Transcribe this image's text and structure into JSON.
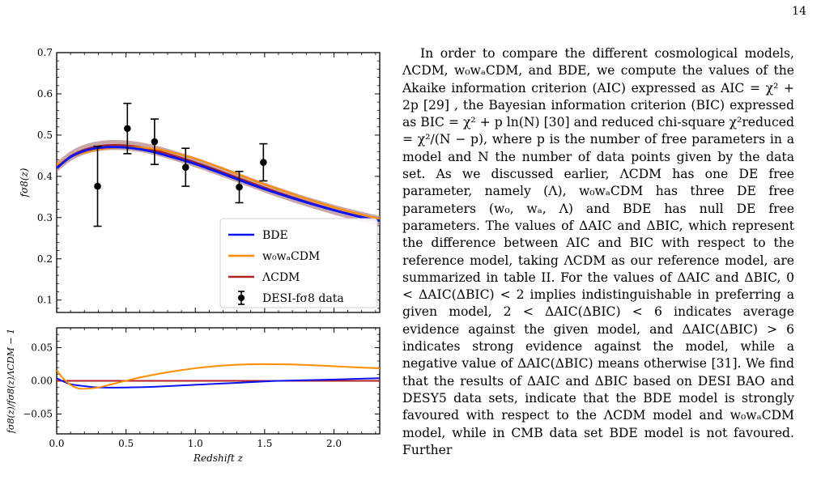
{
  "page_number": "14",
  "paragraph": "In order to compare the different cosmological models, ΛCDM, w₀wₐCDM, and BDE, we compute the values of the Akaike information criterion (AIC) expressed as AIC = χ² + 2p [29] , the Bayesian information criterion (BIC) expressed as BIC = χ² + p ln(N) [30] and reduced chi-square χ²reduced = χ²/(N − p), where p is the number of free parameters in a model and N the number of data points given by the data set. As we discussed earlier, ΛCDM has one DE free parameter, namely (Λ), w₀wₐCDM has three DE free parameters (w₀, wₐ, Λ) and BDE has null DE free parameters. The values of ΔAIC and ΔBIC, which represent the difference between AIC and BIC with respect to the reference model, taking ΛCDM as our reference model, are summarized in table II. For the values of ΔAIC and ΔBIC, 0 < ΔAIC(ΔBIC) < 2 implies indistinguishable in preferring a given model, 2 < ΔAIC(ΔBIC) < 6 indicates average evidence against the given model, and ΔAIC(ΔBIC) > 6 indicates strong evidence against the model, while a negative value of ΔAIC(ΔBIC) means otherwise [31]. We find that the results of ΔAIC and ΔBIC based on DESI BAO and DESY5 data sets, indicate that the BDE model is strongly favoured with respect to the ΛCDM model and w₀wₐCDM model, while in CMB data set BDE model is not favoured. Further",
  "colors": {
    "bde": "#0a14f5",
    "w0wa": "#ff8c00",
    "lcdm": "#b22222",
    "band": "#b88a8a",
    "data": "#000000",
    "ref_link": "#1a4fd6"
  },
  "chart_data": [
    {
      "type": "line",
      "ylabel": "fσ8(z)",
      "xlim": [
        0.0,
        2.33
      ],
      "ylim": [
        0.07,
        0.7
      ],
      "xticks": [
        0.0,
        0.5,
        1.0,
        1.5,
        2.0
      ],
      "yticks": [
        0.1,
        0.2,
        0.3,
        0.4,
        0.5,
        0.6,
        0.7
      ],
      "yticklabels": [
        "0.1",
        "0.2",
        "0.3",
        "0.4",
        "0.5",
        "0.6",
        "0.7"
      ],
      "legend_position": "lower-right",
      "legend": [
        "BDE",
        "w₀wₐCDM",
        "ΛCDM",
        "DESI-fσ8 data"
      ],
      "series": [
        {
          "name": "BDE",
          "x": [
            0.0,
            0.1,
            0.2,
            0.3,
            0.4,
            0.5,
            0.6,
            0.7,
            0.8,
            1.0,
            1.2,
            1.4,
            1.6,
            1.8,
            2.0,
            2.2,
            2.33
          ],
          "y": [
            0.42,
            0.447,
            0.462,
            0.469,
            0.471,
            0.47,
            0.466,
            0.459,
            0.45,
            0.43,
            0.406,
            0.381,
            0.358,
            0.337,
            0.318,
            0.301,
            0.292
          ]
        },
        {
          "name": "w₀wₐCDM",
          "x": [
            0.0,
            0.1,
            0.2,
            0.3,
            0.4,
            0.5,
            0.6,
            0.7,
            0.8,
            1.0,
            1.2,
            1.4,
            1.6,
            1.8,
            2.0,
            2.2,
            2.33
          ],
          "y": [
            0.428,
            0.447,
            0.458,
            0.465,
            0.469,
            0.471,
            0.47,
            0.467,
            0.461,
            0.443,
            0.419,
            0.393,
            0.369,
            0.346,
            0.325,
            0.307,
            0.297
          ]
        },
        {
          "name": "ΛCDM",
          "x": [
            0.0,
            0.1,
            0.2,
            0.3,
            0.4,
            0.5,
            0.6,
            0.7,
            0.8,
            1.0,
            1.2,
            1.4,
            1.6,
            1.8,
            2.0,
            2.2,
            2.33
          ],
          "y": [
            0.422,
            0.449,
            0.465,
            0.473,
            0.476,
            0.475,
            0.471,
            0.464,
            0.455,
            0.434,
            0.41,
            0.385,
            0.361,
            0.339,
            0.319,
            0.302,
            0.292
          ]
        }
      ],
      "band": {
        "name": "ΛCDM",
        "halfwidth": 0.012
      },
      "data_points": {
        "name": "DESI-fσ8 data",
        "x": [
          0.295,
          0.51,
          0.706,
          0.93,
          1.317,
          1.491
        ],
        "y": [
          0.376,
          0.516,
          0.484,
          0.422,
          0.374,
          0.434
        ],
        "err": [
          0.097,
          0.061,
          0.055,
          0.046,
          0.038,
          0.045
        ]
      }
    },
    {
      "type": "line",
      "xlabel": "Redshift z",
      "ylabel": "fσ8(z)/fσ8(z)ΛCDM − 1",
      "xlim": [
        0.0,
        2.33
      ],
      "ylim": [
        -0.08,
        0.08
      ],
      "xticks": [
        0.0,
        0.5,
        1.0,
        1.5,
        2.0
      ],
      "xticklabels": [
        "0.0",
        "0.5",
        "1.0",
        "1.5",
        "2.0"
      ],
      "yticks": [
        -0.05,
        0.0,
        0.05
      ],
      "yticklabels": [
        "−0.05",
        "0.00",
        "0.05"
      ],
      "series": [
        {
          "name": "BDE",
          "x": [
            0.0,
            0.05,
            0.1,
            0.2,
            0.3,
            0.5,
            0.7,
            1.0,
            1.3,
            1.6,
            2.0,
            2.33
          ],
          "y": [
            0.004,
            -0.001,
            -0.005,
            -0.008,
            -0.01,
            -0.01,
            -0.009,
            -0.006,
            -0.003,
            0.0,
            0.002,
            0.004
          ]
        },
        {
          "name": "w₀wₐCDM",
          "x": [
            0.0,
            0.05,
            0.1,
            0.15,
            0.2,
            0.3,
            0.4,
            0.6,
            0.8,
            1.0,
            1.2,
            1.4,
            1.6,
            1.8,
            2.0,
            2.2,
            2.33
          ],
          "y": [
            0.016,
            0.003,
            -0.006,
            -0.011,
            -0.012,
            -0.01,
            -0.005,
            0.005,
            0.013,
            0.019,
            0.023,
            0.025,
            0.025,
            0.024,
            0.022,
            0.02,
            0.019
          ]
        },
        {
          "name": "ΛCDM",
          "x": [
            0.0,
            2.33
          ],
          "y": [
            0.0,
            0.0
          ]
        }
      ]
    }
  ]
}
